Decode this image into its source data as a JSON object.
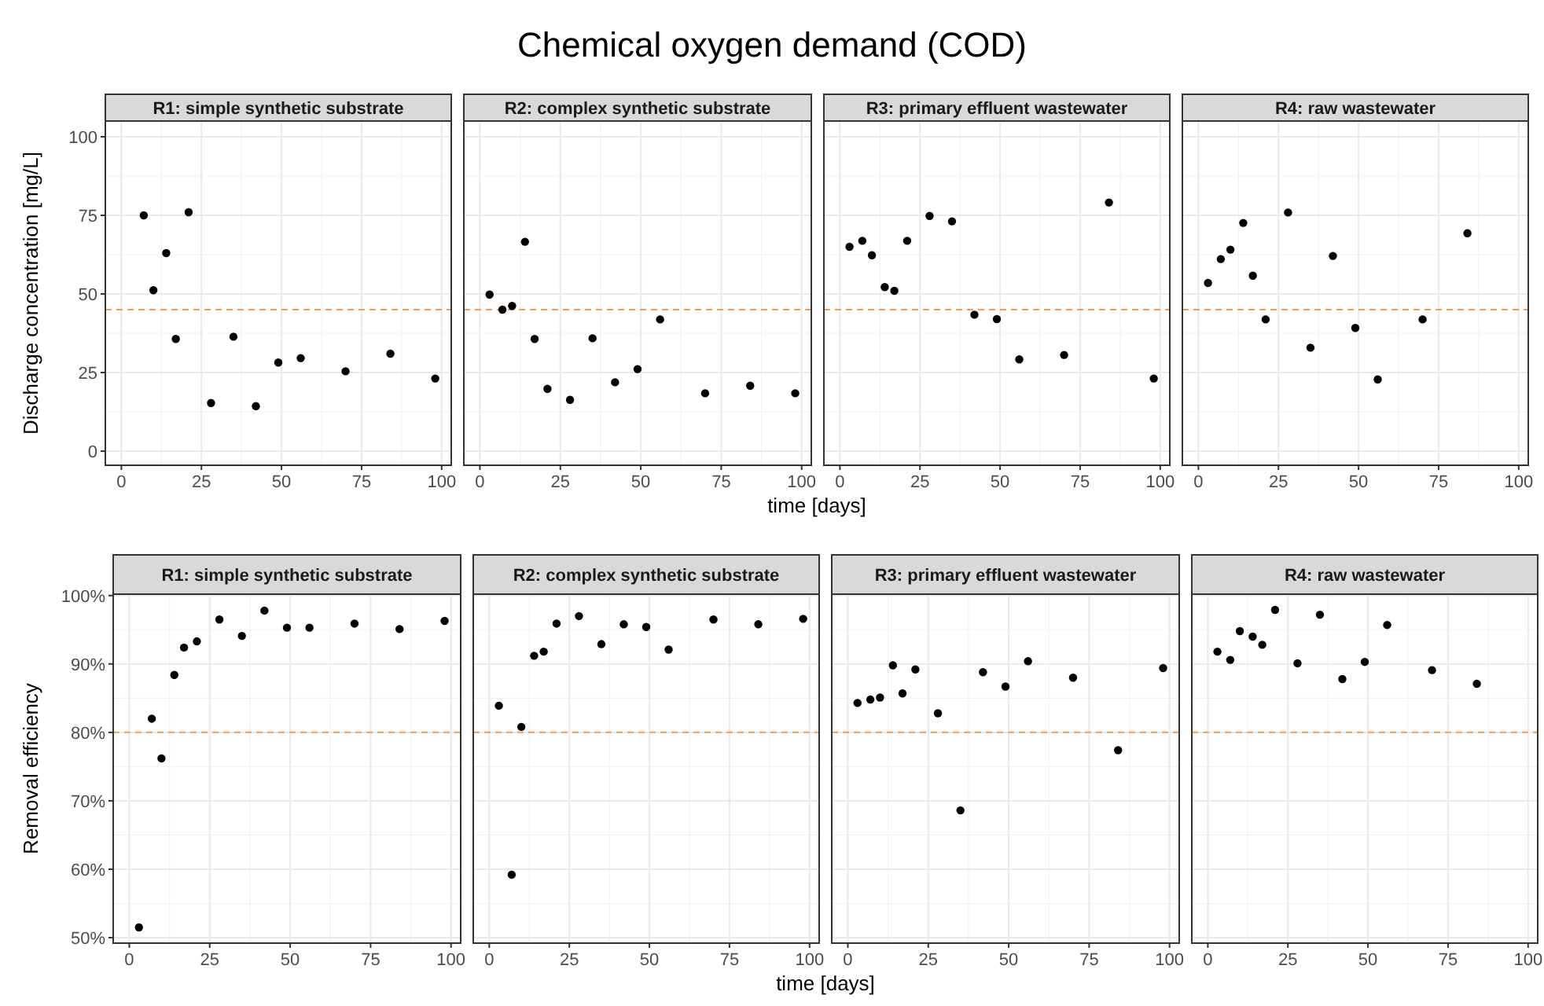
{
  "chart_data": [
    {
      "type": "scatter",
      "subtitle": "R1: simple synthetic substrate",
      "ylabel": "Discharge concentration [mg/L]",
      "marker": "circle",
      "color": "#000000",
      "grid": true,
      "xlim": [
        -5,
        103
      ],
      "xticks": [
        0,
        25,
        50,
        75,
        100
      ],
      "ylim": [
        -4.5,
        105
      ],
      "yticks": [
        0,
        25,
        50,
        75,
        100
      ],
      "ref_lines": [
        {
          "axis": "y",
          "value": 45,
          "color": "#f5a04a",
          "line_style": "dashed"
        }
      ],
      "x": [
        7,
        10,
        14,
        17,
        21,
        28,
        35,
        42,
        49,
        56,
        70,
        84,
        98
      ],
      "values": [
        75,
        51.2,
        63,
        35.7,
        76,
        15.3,
        36.4,
        14.3,
        28.2,
        29.6,
        25.4,
        31,
        23.1
      ]
    },
    {
      "type": "scatter",
      "title": "Chemical oxygen demand (COD)",
      "subtitle": "R2: complex synthetic substrate",
      "xlabel": "time [days]",
      "marker": "circle",
      "color": "#000000",
      "grid": true,
      "tick_labels": "x",
      "xlim": [
        -5,
        103
      ],
      "xticks": [
        0,
        25,
        50,
        75,
        100
      ],
      "ylim": [
        -4.5,
        105
      ],
      "yticks": [
        0,
        25,
        50,
        75,
        100
      ],
      "ref_lines": [
        {
          "axis": "y",
          "value": 45,
          "color": "#f5a04a",
          "line_style": "dashed"
        }
      ],
      "x": [
        3,
        7,
        10,
        14,
        17,
        21,
        28,
        35,
        42,
        49,
        56,
        70,
        84,
        98
      ],
      "values": [
        49.8,
        45,
        46.2,
        66.6,
        35.7,
        19.8,
        16.3,
        35.9,
        21.9,
        26.1,
        41.9,
        18.4,
        20.8,
        18.4
      ]
    },
    {
      "type": "scatter",
      "subtitle": "R3: primary effluent wastewater",
      "marker": "circle",
      "color": "#000000",
      "grid": true,
      "tick_labels": "x",
      "xlim": [
        -5,
        103
      ],
      "xticks": [
        0,
        25,
        50,
        75,
        100
      ],
      "ylim": [
        -4.5,
        105
      ],
      "yticks": [
        0,
        25,
        50,
        75,
        100
      ],
      "ref_lines": [
        {
          "axis": "y",
          "value": 45,
          "color": "#f5a04a",
          "line_style": "dashed"
        }
      ],
      "x": [
        3,
        7,
        10,
        14,
        17,
        21,
        28,
        35,
        42,
        49,
        56,
        70,
        84,
        98
      ],
      "values": [
        65,
        66.9,
        62.3,
        52.2,
        51,
        66.9,
        74.8,
        73.1,
        43.4,
        42,
        29.2,
        30.6,
        79.1,
        23.1
      ]
    },
    {
      "type": "scatter",
      "subtitle": "R4: raw wastewater",
      "marker": "circle",
      "color": "#000000",
      "grid": true,
      "tick_labels": "x",
      "xlim": [
        -5,
        103
      ],
      "xticks": [
        0,
        25,
        50,
        75,
        100
      ],
      "ylim": [
        -4.5,
        105
      ],
      "yticks": [
        0,
        25,
        50,
        75,
        100
      ],
      "ref_lines": [
        {
          "axis": "y",
          "value": 45,
          "color": "#f5a04a",
          "line_style": "dashed"
        }
      ],
      "x": [
        3,
        7,
        10,
        14,
        17,
        21,
        28,
        35,
        42,
        49,
        56,
        70,
        84
      ],
      "values": [
        53.5,
        61.1,
        64.1,
        72.6,
        55.8,
        41.9,
        75.9,
        32.9,
        62.1,
        39.2,
        22.8,
        41.9,
        69.3
      ]
    },
    {
      "type": "scatter",
      "subtitle": "R1: simple synthetic substrate",
      "ylabel": "Removal efficiency",
      "marker": "circle",
      "color": "#000000",
      "grid": true,
      "xlim": [
        -5,
        103
      ],
      "xticks": [
        0,
        25,
        50,
        75,
        100
      ],
      "ylim": [
        49.2,
        100.2
      ],
      "yticks": [
        {
          "value": 50,
          "label": "50%"
        },
        {
          "value": 60,
          "label": "60%"
        },
        {
          "value": 70,
          "label": "70%"
        },
        {
          "value": 80,
          "label": "80%"
        },
        {
          "value": 90,
          "label": "90%"
        },
        {
          "value": 100,
          "label": "100%"
        }
      ],
      "ref_lines": [
        {
          "axis": "y",
          "value": 80,
          "color": "#f5a04a",
          "line_style": "dashed"
        }
      ],
      "x": [
        3,
        7,
        10,
        14,
        17,
        21,
        28,
        35,
        42,
        49,
        56,
        70,
        84,
        98
      ],
      "values": [
        51.5,
        82,
        76.2,
        88.4,
        92.4,
        93.3,
        96.5,
        94.1,
        97.8,
        95.3,
        95.3,
        95.9,
        95.1,
        96.3
      ]
    },
    {
      "type": "scatter",
      "subtitle": "R2: complex synthetic substrate",
      "xlabel": "time [days]",
      "marker": "circle",
      "color": "#000000",
      "grid": true,
      "tick_labels": "x",
      "xlim": [
        -5,
        103
      ],
      "xticks": [
        0,
        25,
        50,
        75,
        100
      ],
      "ylim": [
        49.2,
        100.2
      ],
      "yticks": [
        {
          "value": 50,
          "label": null
        },
        {
          "value": 60,
          "label": null
        },
        {
          "value": 70,
          "label": null
        },
        {
          "value": 80,
          "label": null
        },
        {
          "value": 90,
          "label": null
        },
        {
          "value": 100,
          "label": null
        }
      ],
      "ref_lines": [
        {
          "axis": "y",
          "value": 80,
          "color": "#f5a04a",
          "line_style": "dashed"
        }
      ],
      "x": [
        3,
        7,
        10,
        14,
        17,
        21,
        28,
        35,
        42,
        49,
        56,
        70,
        84,
        98
      ],
      "values": [
        83.9,
        59.2,
        80.8,
        91.2,
        91.8,
        95.9,
        97,
        92.9,
        95.8,
        95.4,
        92.1,
        96.5,
        95.8,
        96.6
      ]
    },
    {
      "type": "scatter",
      "subtitle": "R3: primary effluent wastewater",
      "marker": "circle",
      "color": "#000000",
      "grid": true,
      "tick_labels": "x",
      "xlim": [
        -5,
        103
      ],
      "xticks": [
        0,
        25,
        50,
        75,
        100
      ],
      "ylim": [
        49.2,
        100.2
      ],
      "yticks": [
        {
          "value": 50,
          "label": null
        },
        {
          "value": 60,
          "label": null
        },
        {
          "value": 70,
          "label": null
        },
        {
          "value": 80,
          "label": null
        },
        {
          "value": 90,
          "label": null
        },
        {
          "value": 100,
          "label": null
        }
      ],
      "ref_lines": [
        {
          "axis": "y",
          "value": 80,
          "color": "#f5a04a",
          "line_style": "dashed"
        }
      ],
      "x": [
        3,
        7,
        10,
        14,
        17,
        21,
        28,
        35,
        42,
        49,
        56,
        70,
        84,
        98
      ],
      "values": [
        84.3,
        84.8,
        85.1,
        89.8,
        85.7,
        89.2,
        82.8,
        68.6,
        88.8,
        86.7,
        90.4,
        88,
        77.4,
        89.4
      ]
    },
    {
      "type": "scatter",
      "subtitle": "R4: raw wastewater",
      "marker": "circle",
      "color": "#000000",
      "grid": true,
      "tick_labels": "x",
      "xlim": [
        -5,
        103
      ],
      "xticks": [
        0,
        25,
        50,
        75,
        100
      ],
      "ylim": [
        49.2,
        100.2
      ],
      "yticks": [
        {
          "value": 50,
          "label": null
        },
        {
          "value": 60,
          "label": null
        },
        {
          "value": 70,
          "label": null
        },
        {
          "value": 80,
          "label": null
        },
        {
          "value": 90,
          "label": null
        },
        {
          "value": 100,
          "label": null
        }
      ],
      "ref_lines": [
        {
          "axis": "y",
          "value": 80,
          "color": "#f5a04a",
          "line_style": "dashed"
        }
      ],
      "x": [
        3,
        7,
        10,
        14,
        17,
        21,
        28,
        35,
        42,
        49,
        56,
        70,
        84
      ],
      "values": [
        91.8,
        90.6,
        94.8,
        94,
        92.8,
        97.9,
        90.1,
        97.2,
        87.8,
        90.3,
        95.7,
        89.1,
        87.1
      ]
    }
  ]
}
